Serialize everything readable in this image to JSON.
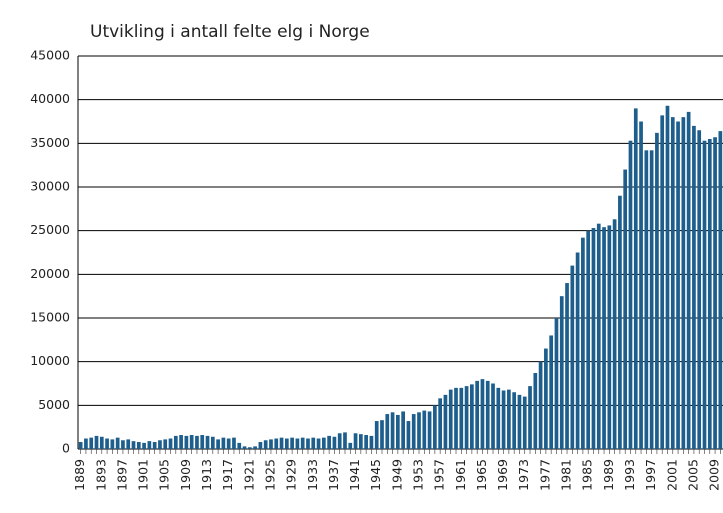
{
  "chart_data": {
    "type": "bar",
    "title": "Utvikling i antall felte elg i Norge",
    "categories": [
      "1889",
      null,
      null,
      null,
      "1893",
      null,
      null,
      null,
      "1897",
      null,
      null,
      null,
      "1901",
      null,
      null,
      null,
      "1905",
      null,
      null,
      null,
      "1909",
      null,
      null,
      null,
      "1913",
      null,
      null,
      null,
      "1917",
      null,
      null,
      null,
      "1921",
      null,
      null,
      null,
      "1925",
      null,
      null,
      null,
      "1929",
      null,
      null,
      null,
      "1933",
      null,
      null,
      null,
      "1937",
      null,
      null,
      null,
      "1941",
      null,
      null,
      null,
      "1945",
      null,
      null,
      null,
      "1949",
      null,
      null,
      null,
      "1953",
      null,
      null,
      null,
      "1957",
      null,
      null,
      null,
      "1961",
      null,
      null,
      null,
      "1965",
      null,
      null,
      null,
      "1969",
      null,
      null,
      null,
      "1973",
      null,
      null,
      null,
      "1977",
      null,
      null,
      null,
      "1981",
      null,
      null,
      null,
      "1985",
      null,
      null,
      null,
      "1989",
      null,
      null,
      null,
      "1993",
      null,
      null,
      null,
      "1997",
      null,
      null,
      null,
      "2001",
      null,
      null,
      null,
      "2005",
      null,
      null,
      null,
      "2009",
      null
    ],
    "values": [
      800,
      1200,
      1300,
      1500,
      1400,
      1200,
      1100,
      1300,
      1000,
      1100,
      900,
      800,
      700,
      900,
      800,
      1000,
      1100,
      1200,
      1500,
      1600,
      1500,
      1600,
      1500,
      1600,
      1500,
      1400,
      1100,
      1300,
      1200,
      1300,
      700,
      300,
      200,
      300,
      800,
      1000,
      1100,
      1200,
      1300,
      1200,
      1300,
      1200,
      1300,
      1200,
      1300,
      1200,
      1300,
      1500,
      1400,
      1800,
      1900,
      700,
      1800,
      1700,
      1600,
      1500,
      3200,
      3300,
      4000,
      4200,
      3900,
      4300,
      3200,
      4000,
      4200,
      4400,
      4300,
      5000,
      5800,
      6200,
      6800,
      7000,
      7000,
      7200,
      7400,
      7800,
      8000,
      7800,
      7500,
      7000,
      6700,
      6800,
      6500,
      6200,
      6000,
      7200,
      8700,
      10000,
      11500,
      13000,
      15000,
      17500,
      19000,
      21000,
      22500,
      24200,
      25000,
      25300,
      25800,
      25400,
      25600,
      26300,
      29000,
      32000,
      35300,
      39000,
      37500,
      34200,
      34200,
      36200,
      38200,
      39300,
      38000,
      37500,
      38000,
      38600,
      37000,
      36500,
      35300,
      35500,
      35700,
      36400
    ],
    "color": "#1d5e8c",
    "ylim": [
      0,
      45000
    ],
    "yticks": [
      0,
      5000,
      10000,
      15000,
      20000,
      25000,
      30000,
      35000,
      40000,
      45000
    ],
    "grid": true
  }
}
